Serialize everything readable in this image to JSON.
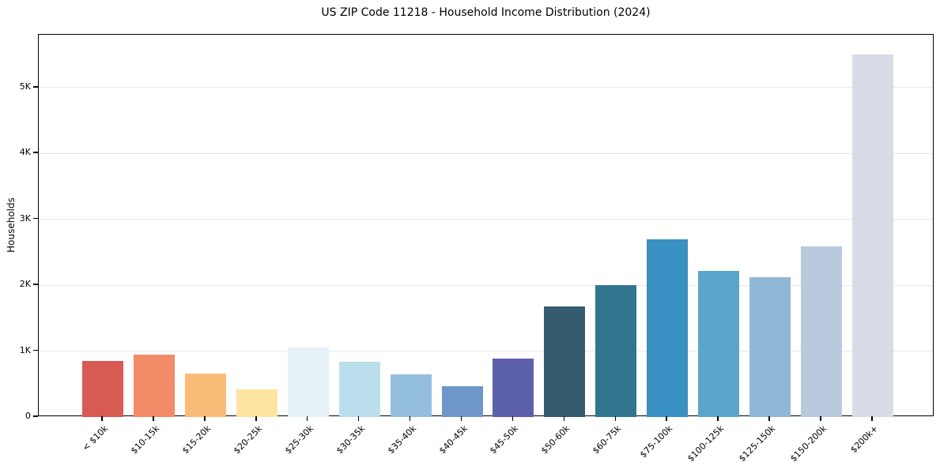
{
  "chart_data": {
    "type": "bar",
    "title": "US ZIP Code 11218 - Household Income Distribution (2024)",
    "xlabel": "",
    "ylabel": "Households",
    "categories": [
      "< $10k",
      "$10-15k",
      "$15-20k",
      "$20-25k",
      "$25-30k",
      "$30-35k",
      "$35-40k",
      "$40-45k",
      "$45-50k",
      "$50-60k",
      "$60-75k",
      "$75-100k",
      "$100-125k",
      "$125-150k",
      "$150-200k",
      "$200k+"
    ],
    "values": [
      850,
      950,
      660,
      420,
      1050,
      840,
      645,
      470,
      890,
      1680,
      2000,
      2700,
      2220,
      2120,
      2590,
      5500
    ],
    "bar_colors": [
      "#d85b53",
      "#f28b67",
      "#fabc78",
      "#fde4a1",
      "#e6f2f7",
      "#badeec",
      "#94bedd",
      "#6e96c8",
      "#5c5fa9",
      "#355b6e",
      "#31768f",
      "#3990c2",
      "#5ba4ca",
      "#90b7d6",
      "#b9c9de",
      "#d9dbe7"
    ],
    "yticks": {
      "values": [
        0,
        1000,
        2000,
        3000,
        4000,
        5000
      ],
      "labels": [
        "0",
        "1K",
        "2K",
        "3K",
        "4K",
        "5K"
      ]
    },
    "ylim": [
      0,
      5800
    ],
    "grid": "horizontal",
    "gridline_color": "#e8e8e8",
    "spine_color": "#000000",
    "x_tick_rotation": 45,
    "legend": "none"
  }
}
